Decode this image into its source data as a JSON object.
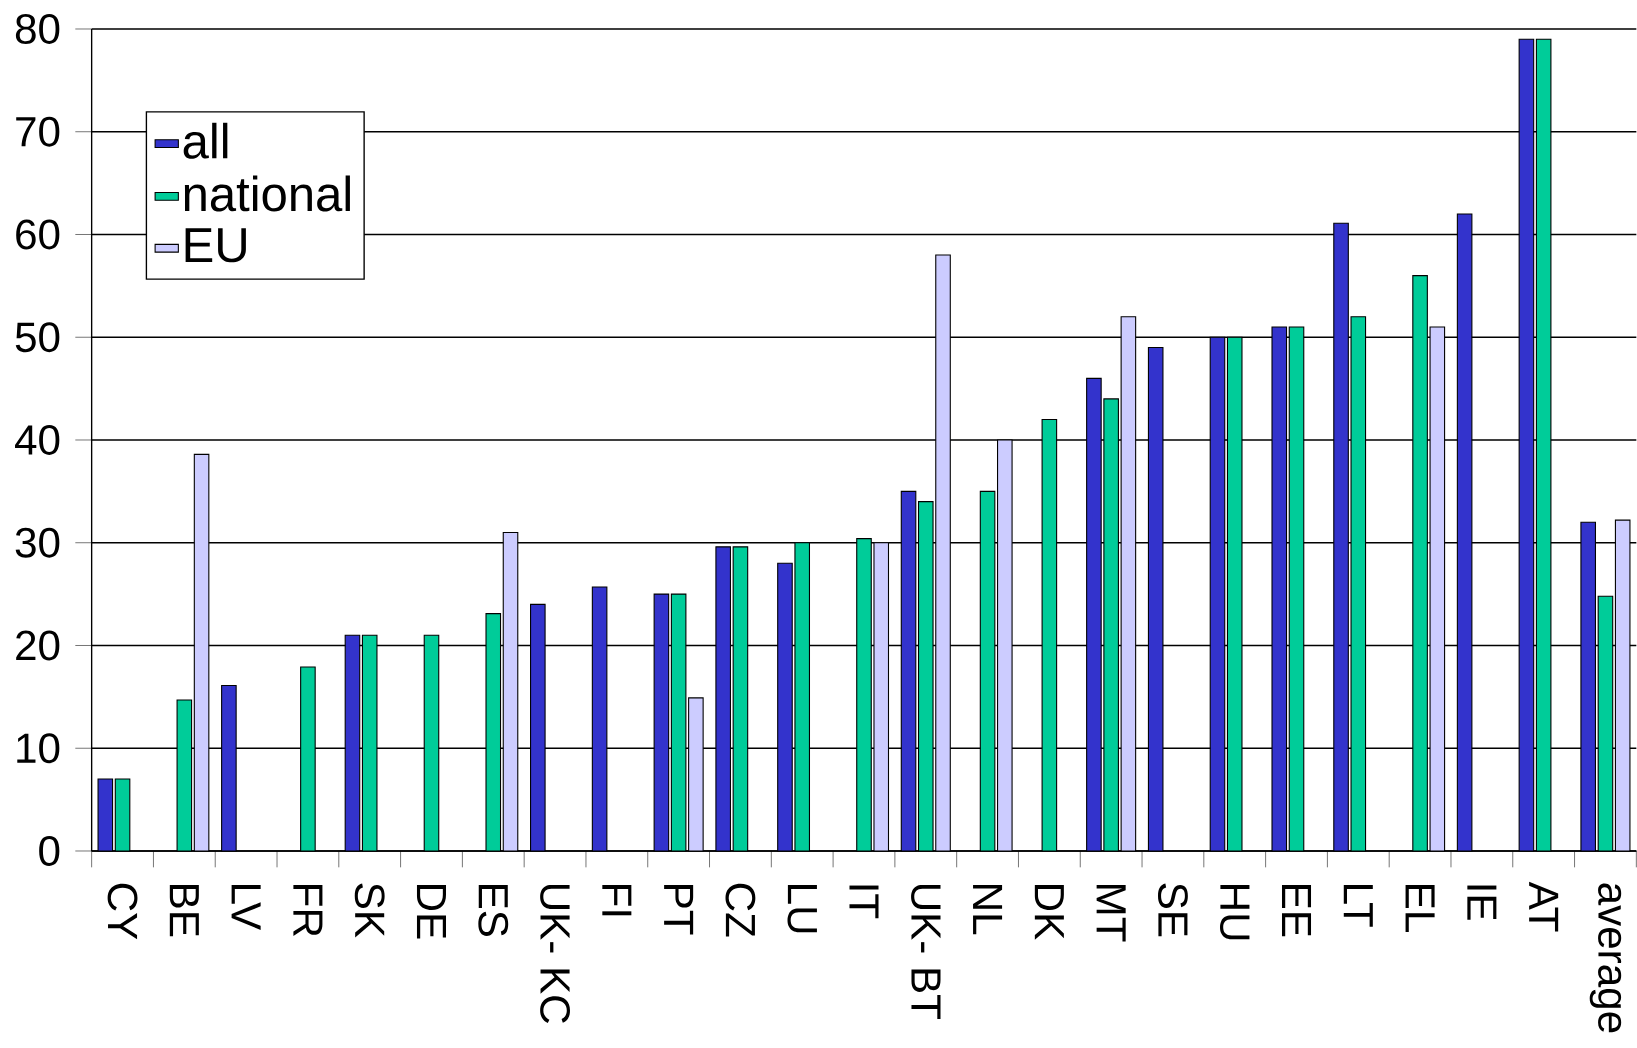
{
  "chart_data": {
    "type": "bar",
    "categories": [
      "CY",
      "BE",
      "LV",
      "FR",
      "SK",
      "DE",
      "ES",
      "UK- KC",
      "FI",
      "PT",
      "CZ",
      "LU",
      "IT",
      "UK- BT",
      "NL",
      "DK",
      "MT",
      "SE",
      "HU",
      "EE",
      "LT",
      "EL",
      "IE",
      "AT",
      "average"
    ],
    "series": [
      {
        "name": "all",
        "color": "#3333cc",
        "values": [
          7,
          null,
          16.1,
          null,
          21,
          null,
          null,
          24,
          25.7,
          25,
          29.6,
          28,
          null,
          35,
          null,
          null,
          46,
          49,
          50,
          51,
          61.1,
          null,
          62,
          79,
          32
        ]
      },
      {
        "name": "national",
        "color": "#00cc99",
        "values": [
          7,
          14.7,
          null,
          17.9,
          21,
          21,
          23.1,
          null,
          null,
          25,
          29.6,
          30,
          30.4,
          34,
          35,
          42,
          44,
          null,
          50,
          51,
          52,
          56,
          null,
          79,
          24.8
        ]
      },
      {
        "name": "EU",
        "color": "#ccccff",
        "values": [
          null,
          38.6,
          null,
          null,
          null,
          null,
          31,
          null,
          null,
          14.9,
          null,
          null,
          30,
          58,
          40,
          null,
          52,
          null,
          null,
          null,
          null,
          51,
          null,
          null,
          32.2
        ]
      }
    ],
    "ylim": [
      0,
      80
    ],
    "yticks": [
      0,
      10,
      20,
      30,
      40,
      50,
      60,
      70,
      80
    ],
    "grid": "y",
    "legend": "top left"
  }
}
